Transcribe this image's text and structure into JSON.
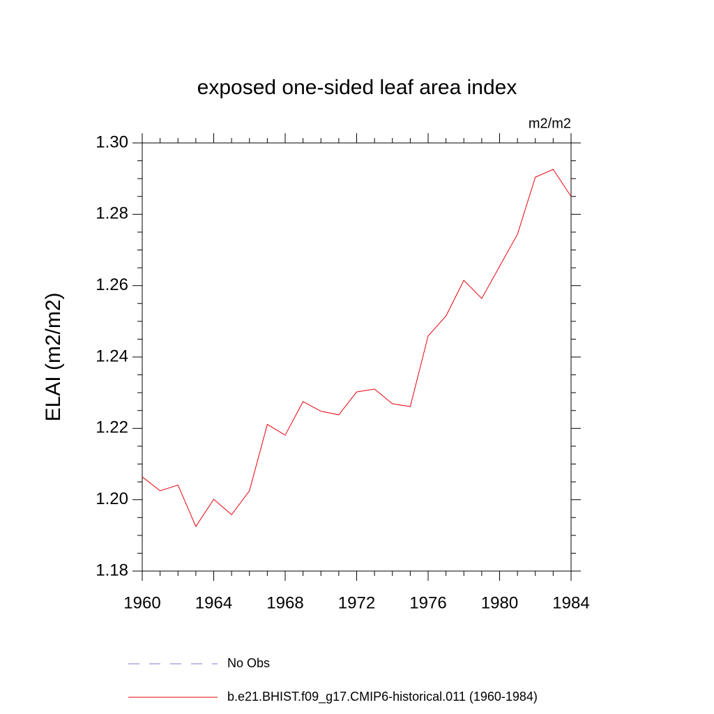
{
  "chart_data": {
    "type": "line",
    "title": "exposed one-sided leaf area index",
    "units": "m2/m2",
    "y_label": "ELAI  (m2/m2)",
    "x": [
      1960,
      1961,
      1962,
      1963,
      1964,
      1965,
      1966,
      1967,
      1968,
      1969,
      1970,
      1971,
      1972,
      1973,
      1974,
      1975,
      1976,
      1977,
      1978,
      1979,
      1980,
      1981,
      1982,
      1983,
      1984
    ],
    "series": [
      {
        "name": "No Obs",
        "color": "#7b7bd6",
        "dashed": true,
        "values": [
          null,
          null,
          null,
          null,
          null,
          null,
          null,
          null,
          null,
          null,
          null,
          null,
          null,
          null,
          null,
          null,
          null,
          null,
          null,
          null,
          null,
          null,
          null,
          null,
          null
        ]
      },
      {
        "name": "b.e21.BHIST.f09_g17.CMIP6-historical.011 (1960-1984)",
        "color": "#e8000b",
        "dashed": false,
        "values": [
          1.2064,
          1.2025,
          1.2041,
          1.1925,
          1.2001,
          1.1958,
          1.2025,
          1.2211,
          1.2181,
          1.2275,
          1.2248,
          1.2238,
          1.2302,
          1.231,
          1.2269,
          1.2261,
          1.2459,
          1.2515,
          1.2615,
          1.2564,
          1.2654,
          1.2744,
          1.2904,
          1.2926,
          1.285
        ]
      }
    ],
    "xlim": [
      1960,
      1984
    ],
    "xticks": [
      1960,
      1964,
      1968,
      1972,
      1976,
      1980,
      1984
    ],
    "xminorticks": [
      1961,
      1962,
      1963,
      1965,
      1966,
      1967,
      1969,
      1970,
      1971,
      1973,
      1974,
      1975,
      1977,
      1978,
      1979,
      1981,
      1982,
      1983
    ],
    "ylim": [
      1.18,
      1.3
    ],
    "yticks": [
      1.18,
      {
        "value": 1.2,
        "label": "1.20"
      },
      1.22,
      1.24,
      1.26,
      1.28,
      {
        "value": 1.3,
        "label": "1.30"
      }
    ],
    "yminorticks": [
      1.185,
      1.19,
      1.195,
      1.205,
      1.21,
      1.215,
      1.225,
      1.23,
      1.235,
      1.245,
      1.25,
      1.255,
      1.265,
      1.27,
      1.275,
      1.285,
      1.29,
      1.295
    ],
    "grid": false
  }
}
